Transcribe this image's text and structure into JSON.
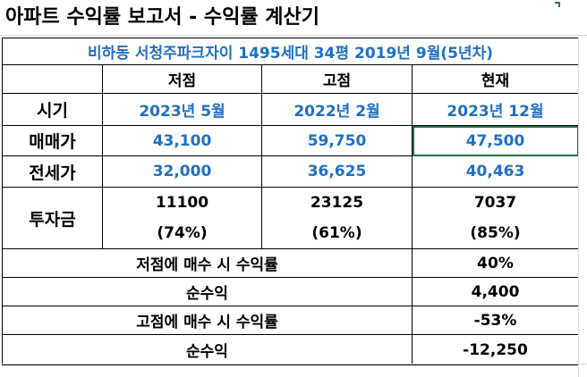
{
  "title": "아파트 수익률 보고서 - 수익률 계산기",
  "subtitle": "비하동 서청주파크자이 1495세대 34평 2019년 9월(5년차)",
  "colors": {
    "accent_blue": "#1f6fc4",
    "selection_green": "#217346"
  },
  "header": {
    "low": "저점",
    "high": "고점",
    "current": "현재"
  },
  "rows": {
    "period": {
      "label": "시기",
      "low": "2023년 5월",
      "high": "2022년 2월",
      "current": "2023년 12월"
    },
    "sale": {
      "label": "매매가",
      "low": "43,100",
      "high": "59,750",
      "current": "47,500"
    },
    "jeonse": {
      "label": "전세가",
      "low": "32,000",
      "high": "36,625",
      "current": "40,463"
    },
    "investment": {
      "label": "투자금",
      "low": "11100",
      "low_pct": "(74%)",
      "high": "23125",
      "high_pct": "(61%)",
      "current": "7037",
      "current_pct": "(85%)"
    }
  },
  "summary": [
    {
      "label": "저점에 매수 시 수익률",
      "value": "40%"
    },
    {
      "label": "순수익",
      "value": "4,400"
    },
    {
      "label": "고점에 매수 시 수익률",
      "value": "-53%"
    },
    {
      "label": "순수익",
      "value": "-12,250"
    }
  ]
}
